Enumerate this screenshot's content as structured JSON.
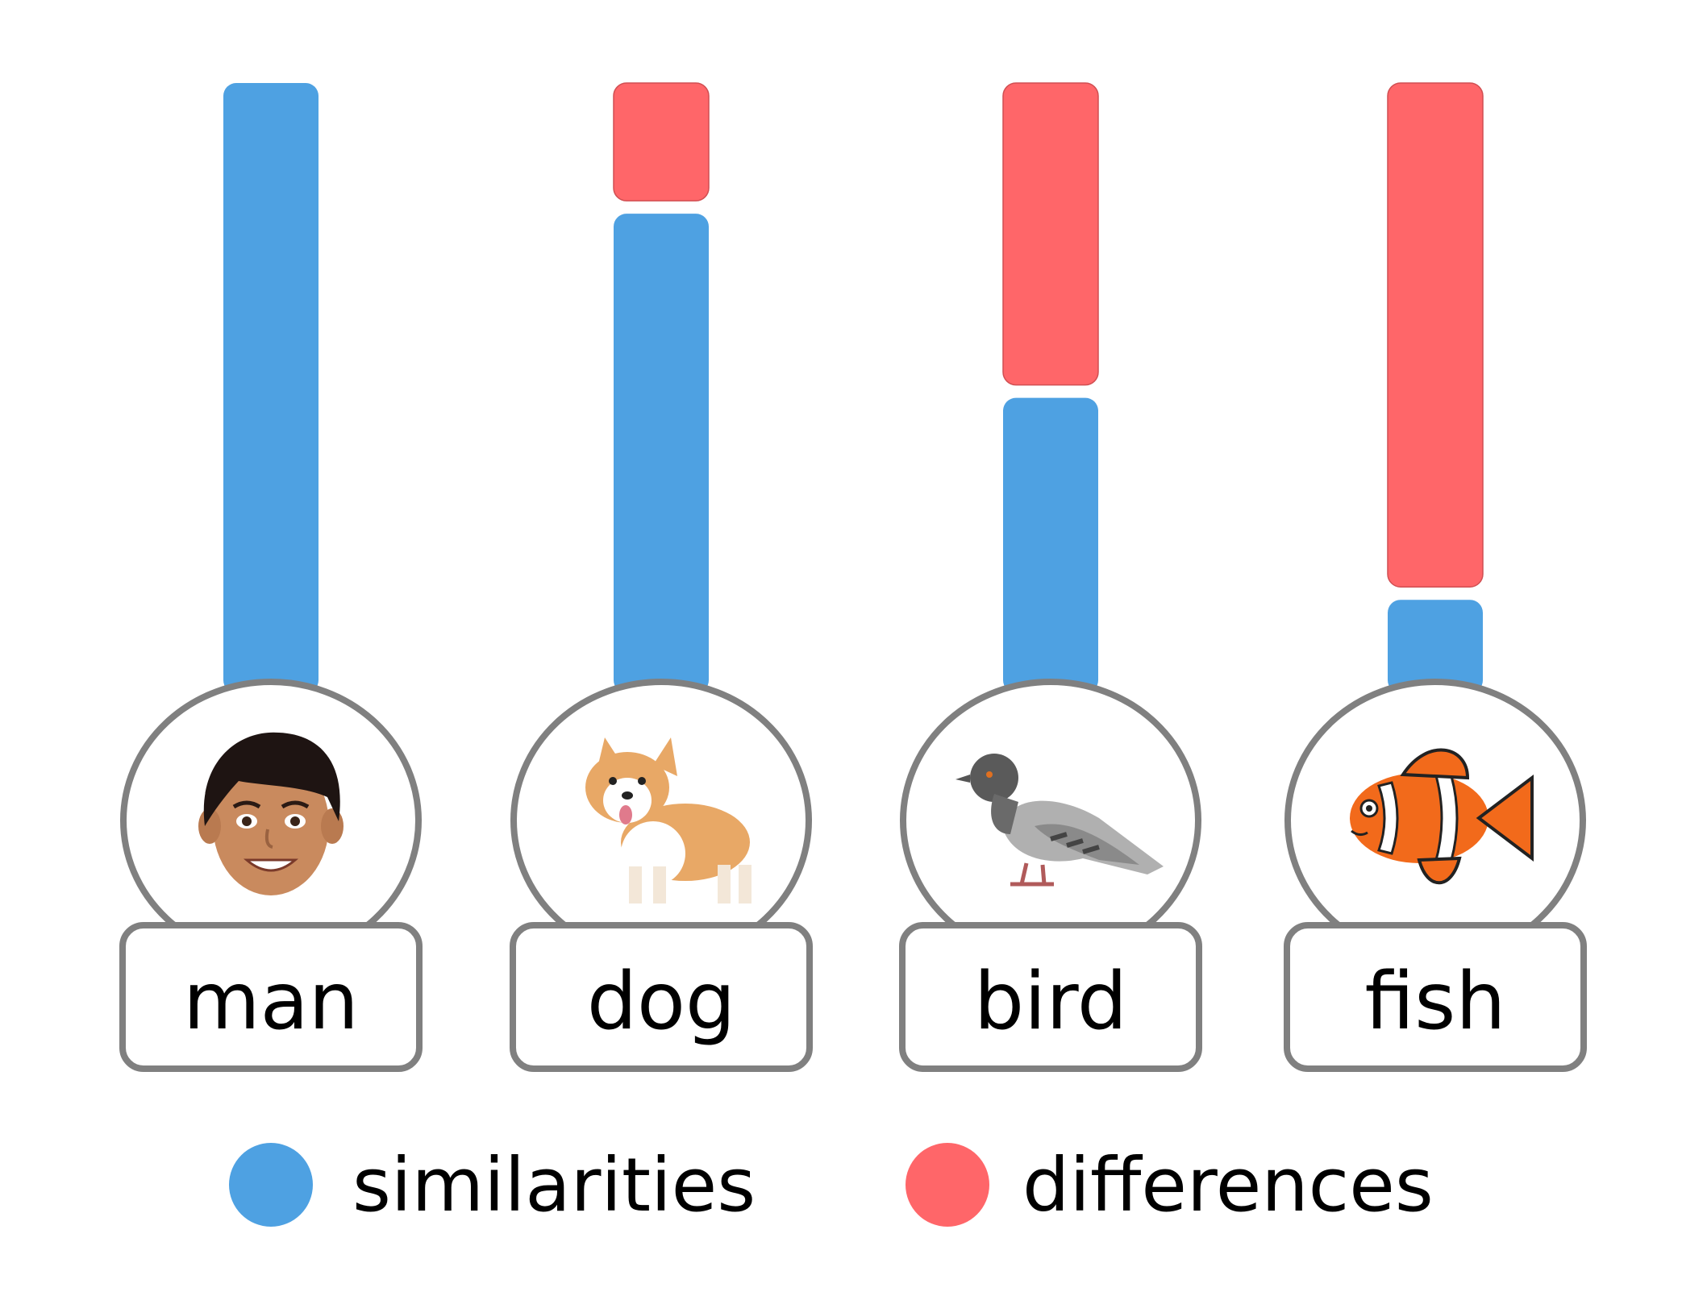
{
  "chart_data": {
    "type": "bar",
    "stacked": true,
    "categories": [
      "man",
      "dog",
      "bird",
      "fish"
    ],
    "category_icons": [
      "man-face-icon",
      "corgi-dog-icon",
      "pigeon-bird-icon",
      "clownfish-icon"
    ],
    "series": [
      {
        "name": "similarities",
        "color": "#4ea1e2",
        "values": [
          1.0,
          0.78,
          0.47,
          0.13
        ]
      },
      {
        "name": "differences",
        "color": "#ff6669",
        "values": [
          0.0,
          0.22,
          0.53,
          0.87
        ]
      }
    ],
    "ylim": [
      0,
      1
    ],
    "grid": false,
    "legend": {
      "placement": "bottom",
      "entries": [
        "similarities",
        "differences"
      ]
    },
    "outline_color": "#808080"
  }
}
